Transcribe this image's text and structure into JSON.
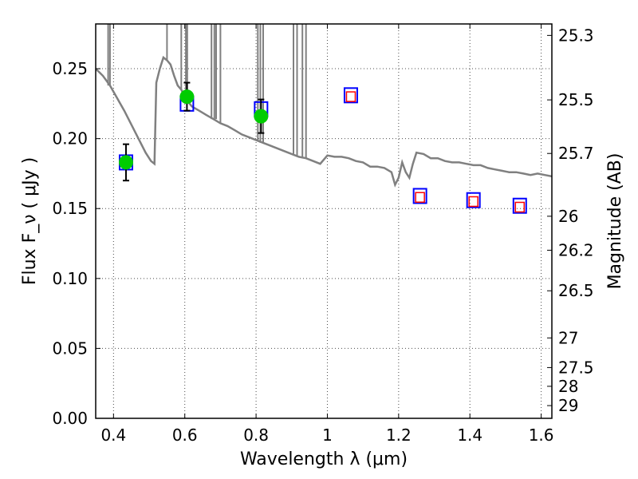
{
  "chart_data": {
    "type": "scatter",
    "xlabel": "Wavelength  λ (μm)",
    "ylabel": "Flux  F_ν  ( μJy )",
    "ylabel_right": "Magnitude (AB)",
    "xlim": [
      0.35,
      1.63
    ],
    "ylim": [
      0.0,
      0.282
    ],
    "grid": true,
    "x_ticks": [
      {
        "value": 0.4,
        "label": "0.4"
      },
      {
        "value": 0.6,
        "label": "0.6"
      },
      {
        "value": 0.8,
        "label": "0.8"
      },
      {
        "value": 1.0,
        "label": "1"
      },
      {
        "value": 1.2,
        "label": "1.2"
      },
      {
        "value": 1.4,
        "label": "1.4"
      },
      {
        "value": 1.6,
        "label": "1.6"
      }
    ],
    "y_ticks": [
      {
        "value": 0.0,
        "label": "0.00"
      },
      {
        "value": 0.05,
        "label": "0.05"
      },
      {
        "value": 0.1,
        "label": "0.10"
      },
      {
        "value": 0.15,
        "label": "0.15"
      },
      {
        "value": 0.2,
        "label": "0.20"
      },
      {
        "value": 0.25,
        "label": "0.25"
      }
    ],
    "mag_ticks": [
      {
        "flux": 0.2738,
        "label": "25.3"
      },
      {
        "flux": 0.2277,
        "label": "25.5"
      },
      {
        "flux": 0.1894,
        "label": "25.7"
      },
      {
        "flux": 0.1445,
        "label": "26"
      },
      {
        "flux": 0.1202,
        "label": "26.2"
      },
      {
        "flux": 0.0912,
        "label": "26.5"
      },
      {
        "flux": 0.0575,
        "label": "27"
      },
      {
        "flux": 0.0363,
        "label": "27.5"
      },
      {
        "flux": 0.0229,
        "label": "28"
      },
      {
        "flux": 0.0091,
        "label": "29"
      }
    ],
    "series": [
      {
        "kind": "model-spectrum",
        "color": "#808080",
        "points": [
          [
            0.35,
            0.25
          ],
          [
            0.37,
            0.245
          ],
          [
            0.39,
            0.238
          ],
          [
            0.41,
            0.229
          ],
          [
            0.43,
            0.22
          ],
          [
            0.45,
            0.21
          ],
          [
            0.47,
            0.2
          ],
          [
            0.49,
            0.19
          ],
          [
            0.505,
            0.184
          ],
          [
            0.515,
            0.182
          ],
          [
            0.52,
            0.24
          ],
          [
            0.53,
            0.25
          ],
          [
            0.54,
            0.258
          ],
          [
            0.55,
            0.256
          ],
          [
            0.56,
            0.253
          ],
          [
            0.57,
            0.245
          ],
          [
            0.58,
            0.238
          ],
          [
            0.59,
            0.235
          ],
          [
            0.6,
            0.23
          ],
          [
            0.61,
            0.226
          ],
          [
            0.62,
            0.223
          ],
          [
            0.64,
            0.22
          ],
          [
            0.66,
            0.217
          ],
          [
            0.68,
            0.214
          ],
          [
            0.7,
            0.211
          ],
          [
            0.72,
            0.209
          ],
          [
            0.74,
            0.206
          ],
          [
            0.76,
            0.203
          ],
          [
            0.78,
            0.201
          ],
          [
            0.8,
            0.199
          ],
          [
            0.82,
            0.197
          ],
          [
            0.84,
            0.195
          ],
          [
            0.86,
            0.193
          ],
          [
            0.88,
            0.191
          ],
          [
            0.9,
            0.189
          ],
          [
            0.92,
            0.187
          ],
          [
            0.94,
            0.186
          ],
          [
            0.96,
            0.184
          ],
          [
            0.98,
            0.182
          ],
          [
            1.0,
            0.188
          ],
          [
            1.02,
            0.187
          ],
          [
            1.04,
            0.187
          ],
          [
            1.06,
            0.186
          ],
          [
            1.08,
            0.184
          ],
          [
            1.1,
            0.183
          ],
          [
            1.12,
            0.18
          ],
          [
            1.14,
            0.18
          ],
          [
            1.16,
            0.179
          ],
          [
            1.18,
            0.176
          ],
          [
            1.19,
            0.167
          ],
          [
            1.2,
            0.172
          ],
          [
            1.21,
            0.183
          ],
          [
            1.22,
            0.176
          ],
          [
            1.23,
            0.172
          ],
          [
            1.24,
            0.182
          ],
          [
            1.25,
            0.19
          ],
          [
            1.27,
            0.189
          ],
          [
            1.29,
            0.186
          ],
          [
            1.31,
            0.186
          ],
          [
            1.33,
            0.184
          ],
          [
            1.35,
            0.183
          ],
          [
            1.37,
            0.183
          ],
          [
            1.39,
            0.182
          ],
          [
            1.41,
            0.181
          ],
          [
            1.43,
            0.181
          ],
          [
            1.45,
            0.179
          ],
          [
            1.47,
            0.178
          ],
          [
            1.49,
            0.177
          ],
          [
            1.51,
            0.176
          ],
          [
            1.53,
            0.176
          ],
          [
            1.55,
            0.175
          ],
          [
            1.57,
            0.174
          ],
          [
            1.59,
            0.175
          ],
          [
            1.61,
            0.174
          ],
          [
            1.63,
            0.173
          ]
        ],
        "emission_lines": [
          0.385,
          0.39,
          0.55,
          0.59,
          0.603,
          0.607,
          0.675,
          0.683,
          0.688,
          0.7,
          0.805,
          0.812,
          0.82,
          0.905,
          0.915,
          0.93,
          0.94
        ]
      },
      {
        "kind": "model-magnitudes",
        "marker": "square",
        "color": "#0000ff",
        "points": [
          [
            0.435,
            0.183
          ],
          [
            0.606,
            0.225
          ],
          [
            0.814,
            0.221
          ],
          [
            1.066,
            0.231
          ],
          [
            1.26,
            0.159
          ],
          [
            1.41,
            0.156
          ],
          [
            1.54,
            0.152
          ]
        ]
      },
      {
        "kind": "upper-points",
        "marker": "square",
        "color": "#ff0000",
        "points": [
          [
            1.066,
            0.23
          ],
          [
            1.26,
            0.158
          ],
          [
            1.41,
            0.155
          ],
          [
            1.54,
            0.151
          ]
        ]
      },
      {
        "kind": "observed",
        "marker": "circle",
        "color": "#00cc00",
        "points": [
          {
            "x": 0.435,
            "y": 0.183,
            "err": 0.013
          },
          {
            "x": 0.606,
            "y": 0.23,
            "err": 0.01
          },
          {
            "x": 0.814,
            "y": 0.216,
            "err": 0.012
          }
        ]
      }
    ]
  }
}
